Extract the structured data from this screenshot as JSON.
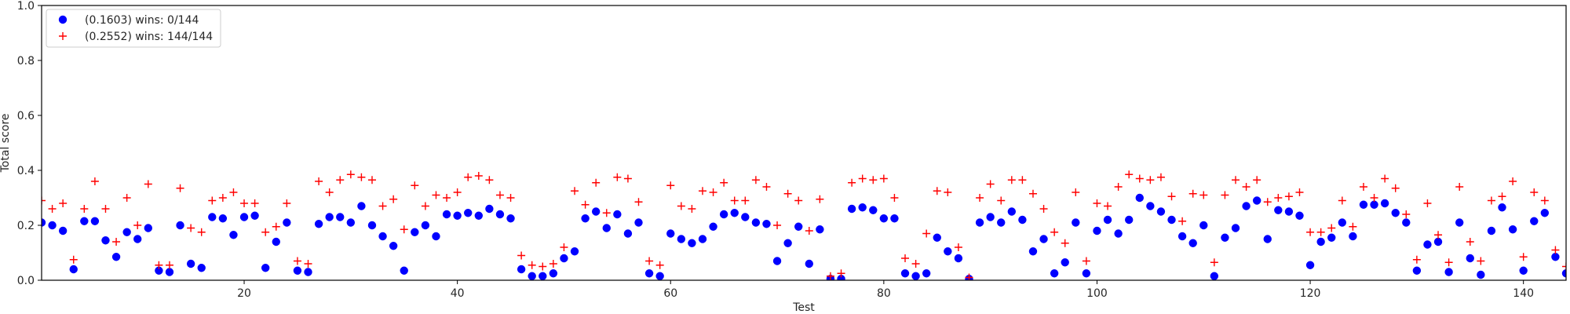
{
  "chart_data": {
    "type": "scatter",
    "xlabel": "Test",
    "ylabel": "Total score",
    "xlim": [
      1,
      144
    ],
    "ylim": [
      0,
      1.0
    ],
    "xticks": [
      20,
      40,
      60,
      80,
      100,
      120,
      140
    ],
    "yticks": [
      0.0,
      0.2,
      0.4,
      0.6,
      0.8,
      1.0
    ],
    "grid": false,
    "legend_position": "top-left",
    "x": [
      1,
      2,
      3,
      4,
      5,
      6,
      7,
      8,
      9,
      10,
      11,
      12,
      13,
      14,
      15,
      16,
      17,
      18,
      19,
      20,
      21,
      22,
      23,
      24,
      25,
      26,
      27,
      28,
      29,
      30,
      31,
      32,
      33,
      34,
      35,
      36,
      37,
      38,
      39,
      40,
      41,
      42,
      43,
      44,
      45,
      46,
      47,
      48,
      49,
      50,
      51,
      52,
      53,
      54,
      55,
      56,
      57,
      58,
      59,
      60,
      61,
      62,
      63,
      64,
      65,
      66,
      67,
      68,
      69,
      70,
      71,
      72,
      73,
      74,
      75,
      76,
      77,
      78,
      79,
      80,
      81,
      82,
      83,
      84,
      85,
      86,
      87,
      88,
      89,
      90,
      91,
      92,
      93,
      94,
      95,
      96,
      97,
      98,
      99,
      100,
      101,
      102,
      103,
      104,
      105,
      106,
      107,
      108,
      109,
      110,
      111,
      112,
      113,
      114,
      115,
      116,
      117,
      118,
      119,
      120,
      121,
      122,
      123,
      124,
      125,
      126,
      127,
      128,
      129,
      130,
      131,
      132,
      133,
      134,
      135,
      136,
      137,
      138,
      139,
      140,
      141,
      142,
      143,
      144
    ],
    "series": [
      {
        "name": "(0.1603) wins: 0/144",
        "marker": "circle",
        "color": "#0000ff",
        "values": [
          0.21,
          0.2,
          0.18,
          0.04,
          0.215,
          0.215,
          0.145,
          0.085,
          0.175,
          0.15,
          0.19,
          0.035,
          0.03,
          0.2,
          0.06,
          0.045,
          0.23,
          0.225,
          0.165,
          0.23,
          0.235,
          0.045,
          0.14,
          0.21,
          0.035,
          0.03,
          0.205,
          0.23,
          0.23,
          0.21,
          0.27,
          0.2,
          0.16,
          0.125,
          0.035,
          0.175,
          0.2,
          0.16,
          0.24,
          0.235,
          0.245,
          0.235,
          0.26,
          0.24,
          0.225,
          0.04,
          0.015,
          0.015,
          0.025,
          0.08,
          0.105,
          0.225,
          0.25,
          0.19,
          0.24,
          0.17,
          0.21,
          0.025,
          0.015,
          0.17,
          0.15,
          0.135,
          0.15,
          0.195,
          0.24,
          0.245,
          0.23,
          0.21,
          0.205,
          0.07,
          0.135,
          0.195,
          0.06,
          0.185,
          0.005,
          0.005,
          0.26,
          0.265,
          0.255,
          0.225,
          0.225,
          0.025,
          0.015,
          0.025,
          0.155,
          0.105,
          0.08,
          0.005,
          0.21,
          0.23,
          0.21,
          0.25,
          0.22,
          0.105,
          0.15,
          0.025,
          0.065,
          0.21,
          0.025,
          0.18,
          0.22,
          0.17,
          0.22,
          0.3,
          0.27,
          0.25,
          0.22,
          0.16,
          0.135,
          0.2,
          0.015,
          0.155,
          0.19,
          0.27,
          0.29,
          0.15,
          0.255,
          0.25,
          0.235,
          0.055,
          0.14,
          0.155,
          0.21,
          0.16,
          0.275,
          0.275,
          0.28,
          0.245,
          0.21,
          0.035,
          0.13,
          0.14,
          0.03,
          0.21,
          0.08,
          0.02,
          0.18,
          0.265,
          0.185,
          0.035,
          0.215,
          0.245,
          0.085,
          0.025
        ]
      },
      {
        "name": "(0.2552) wins: 144/144",
        "marker": "plus",
        "color": "#ff0000",
        "values": [
          0.29,
          0.26,
          0.28,
          0.075,
          0.26,
          0.36,
          0.26,
          0.14,
          0.3,
          0.2,
          0.35,
          0.055,
          0.055,
          0.335,
          0.19,
          0.175,
          0.29,
          0.3,
          0.32,
          0.28,
          0.28,
          0.175,
          0.195,
          0.28,
          0.07,
          0.06,
          0.36,
          0.32,
          0.365,
          0.385,
          0.375,
          0.365,
          0.27,
          0.295,
          0.185,
          0.345,
          0.27,
          0.31,
          0.3,
          0.32,
          0.375,
          0.38,
          0.365,
          0.31,
          0.3,
          0.09,
          0.055,
          0.05,
          0.06,
          0.12,
          0.325,
          0.275,
          0.355,
          0.245,
          0.375,
          0.37,
          0.285,
          0.07,
          0.055,
          0.345,
          0.27,
          0.26,
          0.325,
          0.32,
          0.355,
          0.29,
          0.29,
          0.365,
          0.34,
          0.2,
          0.315,
          0.29,
          0.18,
          0.295,
          0.015,
          0.025,
          0.355,
          0.37,
          0.365,
          0.37,
          0.3,
          0.08,
          0.06,
          0.17,
          0.325,
          0.32,
          0.12,
          0.01,
          0.3,
          0.35,
          0.29,
          0.365,
          0.365,
          0.315,
          0.26,
          0.175,
          0.135,
          0.32,
          0.07,
          0.28,
          0.27,
          0.34,
          0.385,
          0.37,
          0.365,
          0.375,
          0.305,
          0.215,
          0.315,
          0.31,
          0.065,
          0.31,
          0.365,
          0.34,
          0.365,
          0.285,
          0.3,
          0.305,
          0.32,
          0.175,
          0.175,
          0.19,
          0.29,
          0.195,
          0.34,
          0.3,
          0.37,
          0.335,
          0.24,
          0.075,
          0.28,
          0.165,
          0.065,
          0.34,
          0.14,
          0.07,
          0.29,
          0.305,
          0.36,
          0.085,
          0.32,
          0.29,
          0.11,
          0.05
        ]
      }
    ]
  }
}
